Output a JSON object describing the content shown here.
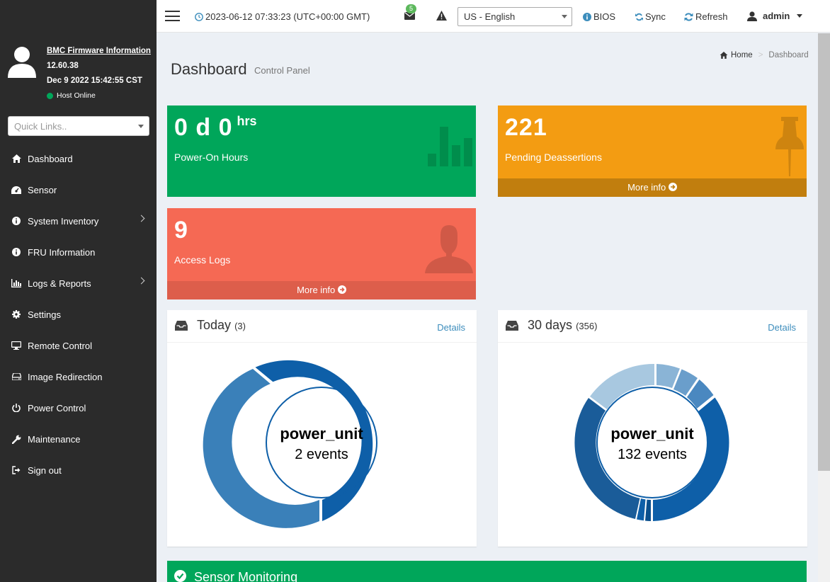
{
  "sidebar": {
    "fw_title": "BMC Firmware Information",
    "fw_version": "12.60.38",
    "fw_date": "Dec 9 2022 15:42:55 CST",
    "host_status": "Host Online",
    "quick_links_placeholder": "Quick Links..",
    "items": [
      {
        "label": "Dashboard",
        "icon": "home-icon"
      },
      {
        "label": "Sensor",
        "icon": "dashboard-gauge-icon"
      },
      {
        "label": "System Inventory",
        "icon": "info-icon"
      },
      {
        "label": "FRU Information",
        "icon": "info-icon"
      },
      {
        "label": "Logs & Reports",
        "icon": "bar-chart-icon"
      },
      {
        "label": "Settings",
        "icon": "gear-icon"
      },
      {
        "label": "Remote Control",
        "icon": "desktop-icon"
      },
      {
        "label": "Image Redirection",
        "icon": "drive-icon"
      },
      {
        "label": "Power Control",
        "icon": "power-icon"
      },
      {
        "label": "Maintenance",
        "icon": "wrench-icon"
      },
      {
        "label": "Sign out",
        "icon": "sign-out-icon"
      }
    ]
  },
  "header": {
    "datetime": "2023-06-12 07:33:23 (UTC+00:00 GMT)",
    "mail_count": "5",
    "language": "US - English",
    "bios": "BIOS",
    "sync": "Sync",
    "refresh": "Refresh",
    "user": "admin"
  },
  "page": {
    "title": "Dashboard",
    "subtitle": "Control Panel",
    "breadcrumb_home": "Home",
    "breadcrumb_current": "Dashboard"
  },
  "tiles": {
    "power_on": {
      "value": "0 d 0",
      "unit": "hrs",
      "label": "Power-On Hours"
    },
    "pending": {
      "value": "221",
      "label": "Pending Deassertions",
      "footer": "More info"
    },
    "access": {
      "value": "9",
      "label": "Access Logs",
      "footer": "More info"
    }
  },
  "today": {
    "title": "Today",
    "count": "(3)",
    "details": "Details",
    "center_title": "power_unit",
    "center_sub": "2 events"
  },
  "thirty": {
    "title": "30 days",
    "count": "(356)",
    "details": "Details",
    "center_title": "power_unit",
    "center_sub": "132 events"
  },
  "sensor_monitoring": "Sensor Monitoring",
  "colors": {
    "green": "#00a65a",
    "orange": "#f39c12",
    "red": "#f56954",
    "link": "#3c8dbc"
  }
}
